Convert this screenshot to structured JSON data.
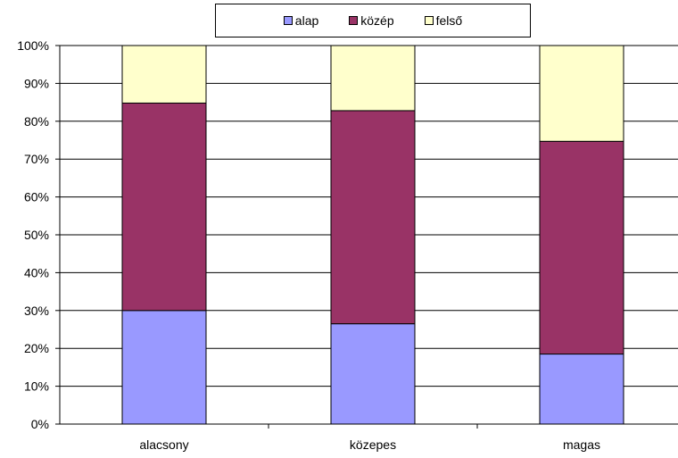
{
  "chart_data": {
    "type": "bar",
    "stacked": true,
    "percent": true,
    "categories": [
      "alacsony",
      "közepes",
      "magas"
    ],
    "series": [
      {
        "name": "alap",
        "color": "#9999ff",
        "values": [
          30,
          26.5,
          18.5
        ]
      },
      {
        "name": "közép",
        "color": "#993366",
        "values": [
          54.8,
          56.3,
          56.2
        ]
      },
      {
        "name": "felső",
        "color": "#ffffcc",
        "values": [
          15.2,
          17.2,
          25.3
        ]
      }
    ],
    "ylim": [
      0,
      100
    ],
    "yticks": [
      "0%",
      "10%",
      "20%",
      "30%",
      "40%",
      "50%",
      "60%",
      "70%",
      "80%",
      "90%",
      "100%"
    ],
    "grid": true,
    "legend_position": "top"
  }
}
